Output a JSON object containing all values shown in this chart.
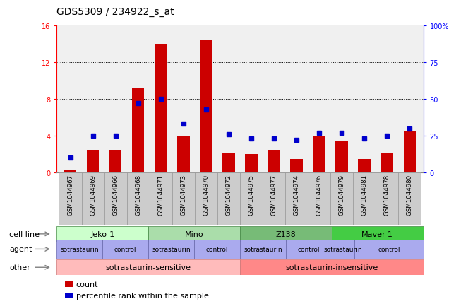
{
  "title": "GDS5309 / 234922_s_at",
  "samples": [
    "GSM1044967",
    "GSM1044969",
    "GSM1044966",
    "GSM1044968",
    "GSM1044971",
    "GSM1044973",
    "GSM1044970",
    "GSM1044972",
    "GSM1044975",
    "GSM1044977",
    "GSM1044974",
    "GSM1044976",
    "GSM1044979",
    "GSM1044981",
    "GSM1044978",
    "GSM1044980"
  ],
  "count_values": [
    0.3,
    2.5,
    2.5,
    9.2,
    14.0,
    4.0,
    14.5,
    2.2,
    2.0,
    2.5,
    1.5,
    4.0,
    3.5,
    1.5,
    2.2,
    4.5
  ],
  "percentile_values": [
    10,
    25,
    25,
    47,
    50,
    33,
    43,
    26,
    23,
    23,
    22,
    27,
    27,
    23,
    25,
    30
  ],
  "ylim_left": [
    0,
    16
  ],
  "ylim_right": [
    0,
    100
  ],
  "yticks_left": [
    0,
    4,
    8,
    12,
    16
  ],
  "yticks_right": [
    0,
    25,
    50,
    75,
    100
  ],
  "ytick_labels_right": [
    "0",
    "25",
    "50",
    "75",
    "100%"
  ],
  "bar_color": "#cc0000",
  "scatter_color": "#0000cc",
  "cell_line_groups": [
    {
      "name": "Jeko-1",
      "start": 0,
      "end": 3,
      "color": "#ccffcc"
    },
    {
      "name": "Mino",
      "start": 4,
      "end": 7,
      "color": "#aaddaa"
    },
    {
      "name": "Z138",
      "start": 8,
      "end": 11,
      "color": "#77bb77"
    },
    {
      "name": "Maver-1",
      "start": 12,
      "end": 15,
      "color": "#44cc44"
    }
  ],
  "agent_groups": [
    {
      "name": "sotrastaurin",
      "start": 0,
      "end": 1
    },
    {
      "name": "control",
      "start": 2,
      "end": 3
    },
    {
      "name": "sotrastaurin",
      "start": 4,
      "end": 5
    },
    {
      "name": "control",
      "start": 6,
      "end": 7
    },
    {
      "name": "sotrastaurin",
      "start": 8,
      "end": 9
    },
    {
      "name": "control",
      "start": 10,
      "end": 11
    },
    {
      "name": "sotrastaurin",
      "start": 12,
      "end": 12
    },
    {
      "name": "control",
      "start": 13,
      "end": 15
    }
  ],
  "other_groups": [
    {
      "name": "sotrastaurin-sensitive",
      "start": 0,
      "end": 7,
      "color": "#ffbbbb"
    },
    {
      "name": "sotrastaurin-insensitive",
      "start": 8,
      "end": 15,
      "color": "#ff8888"
    }
  ],
  "cell_line_label": "cell line",
  "agent_label": "agent",
  "other_label": "other",
  "legend_items": [
    {
      "color": "#cc0000",
      "label": "count"
    },
    {
      "color": "#0000cc",
      "label": "percentile rank within the sample"
    }
  ],
  "plot_bg_color": "#f0f0f0",
  "title_fontsize": 10,
  "tick_fontsize": 7,
  "row_label_fontsize": 8,
  "row_content_fontsize": 7.5,
  "legend_fontsize": 8
}
